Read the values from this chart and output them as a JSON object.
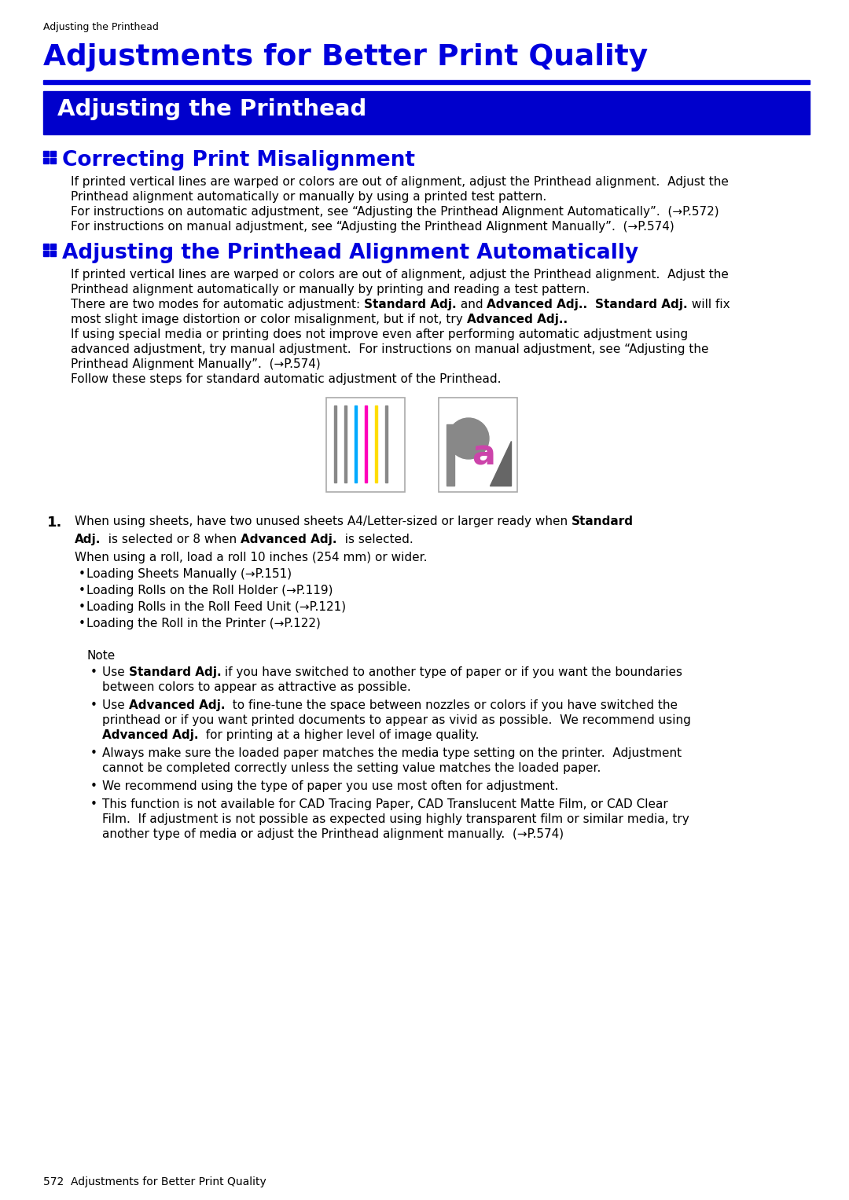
{
  "page_bg": "#ffffff",
  "header_text": "Adjusting the Printhead",
  "main_title": "Adjustments for Better Print Quality",
  "main_title_color": "#0000dd",
  "divider_color": "#0000dd",
  "section_bar_bg": "#0000cc",
  "section_bar_text": "Adjusting the Printhead",
  "h2_color": "#0000dd",
  "body_color": "#000000",
  "footer_text": "572  Adjustments for Better Print Quality"
}
